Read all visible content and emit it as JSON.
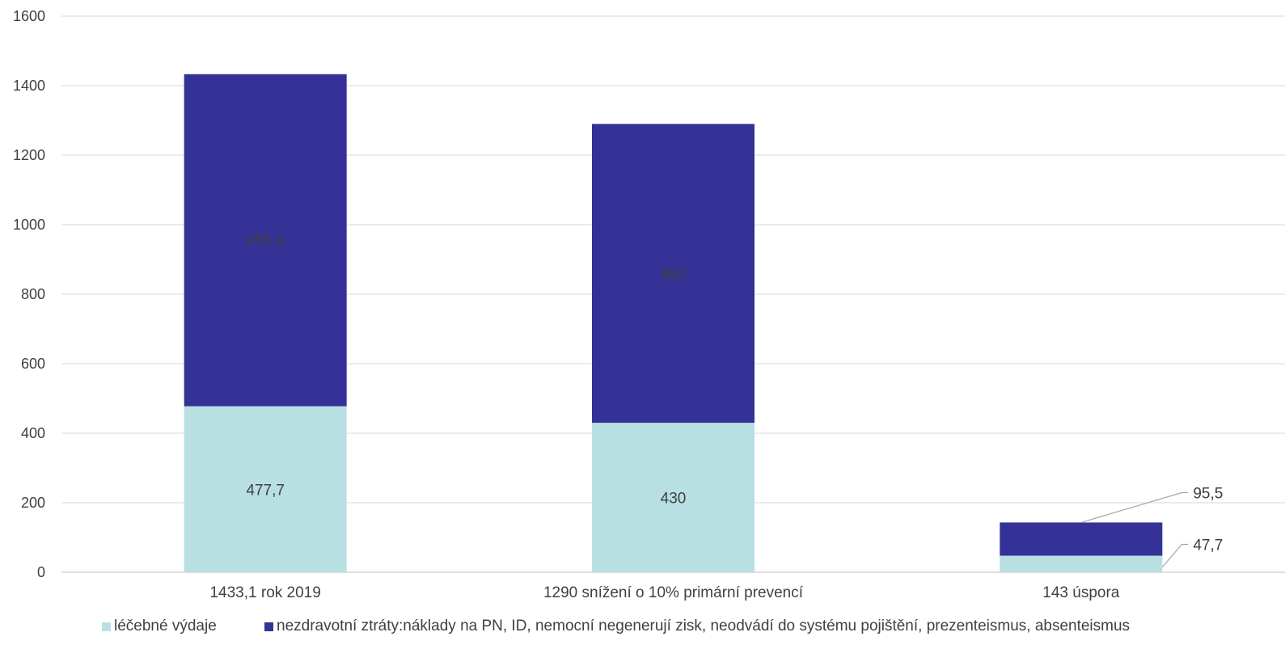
{
  "chart_data": {
    "type": "bar",
    "stacked": true,
    "categories": [
      "1433,1  rok 2019",
      "1290 snížení o 10% primární prevencí",
      "143  úspora"
    ],
    "series": [
      {
        "name": "léčebné výdaje",
        "color": "#b8e0e3",
        "values": [
          477.7,
          430,
          47.7
        ],
        "labels": [
          "477,7",
          "430",
          "47,7"
        ]
      },
      {
        "name": "nezdravotní ztráty:náklady na PN, ID, nemocní negenerují zisk, neodvádí do systému pojištění, prezenteismus, absenteismus",
        "color": "#343297",
        "values": [
          955.4,
          860,
          95.5
        ],
        "labels": [
          "955,4",
          "860",
          "95,5"
        ]
      }
    ],
    "ylim": [
      0,
      1600
    ],
    "yticks": [
      0,
      200,
      400,
      600,
      800,
      1000,
      1200,
      1400,
      1600
    ],
    "grid": true,
    "legend_position": "bottom"
  }
}
